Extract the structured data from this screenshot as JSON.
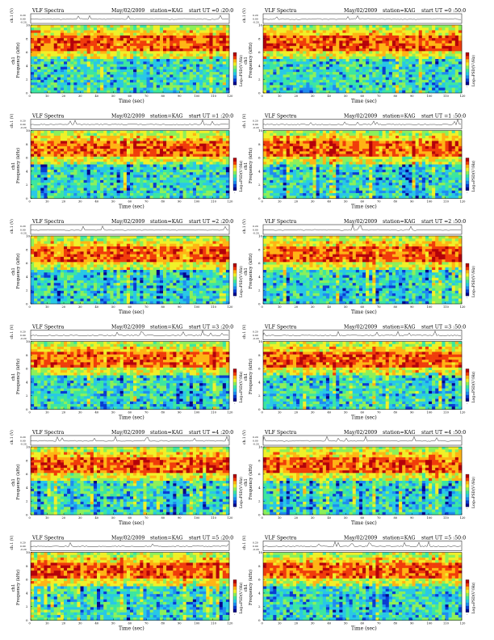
{
  "page": {
    "title": "VLF Spectra"
  },
  "colors": {
    "colormap": [
      "#06068c",
      "#0a3cd2",
      "#1e8cf0",
      "#28c8e6",
      "#3ce6a0",
      "#8cf05a",
      "#f0f028",
      "#ffb414",
      "#f03c0a",
      "#b4000a"
    ],
    "trace": "#000000",
    "background": "#ffffff"
  },
  "panel_text": {
    "title": "VLF Spectra",
    "date": "May/02/2009",
    "station": "station=KAG",
    "start_prefix": "start  UT"
  },
  "axis_text": {
    "ch1_label": "ch.1 (V)",
    "freq_label": "Frequency  (kHz)",
    "freq_label_top": "ch1",
    "colorbar_label": "Log₁₀PSD(V²/Hz)",
    "xlabel": "Time  (sec)"
  },
  "panels": [
    {
      "start": "0 :20:0"
    },
    {
      "start": "0 :50:0"
    },
    {
      "start": "1 :20:0"
    },
    {
      "start": "1 :50:0"
    },
    {
      "start": "2 :20:0"
    },
    {
      "start": "2 :50:0"
    },
    {
      "start": "3 :20:0"
    },
    {
      "start": "3 :50:0"
    },
    {
      "start": "4 :20:0"
    },
    {
      "start": "4 :50:0"
    },
    {
      "start": "5 :20:0"
    },
    {
      "start": "5 :50:0"
    }
  ],
  "chart_data": {
    "type": "heatmap",
    "title": "VLF Spectra",
    "date": "May/02/2009",
    "station": "KAG",
    "xlabel": "Time (sec)",
    "ylabel": "Frequency (kHz)",
    "xlim": [
      0,
      120
    ],
    "ylim": [
      0,
      10
    ],
    "x_ticks": [
      "0",
      "10",
      "20",
      "30",
      "40",
      "50",
      "60",
      "70",
      "80",
      "90",
      "100",
      "110",
      "120"
    ],
    "y_ticks": [
      "0",
      "2",
      "4",
      "6",
      "8",
      "10"
    ],
    "trace_ticks": [
      "0.20",
      "0.00",
      "-0.20"
    ],
    "colorbar": {
      "label": "Log10PSD(V^2/Hz)",
      "low_tick": "-",
      "scale": "blue (low) to red (high)"
    },
    "note": "Spectrogram: strongest power (red) between ~6 and ~9 kHz, moderate (green) below 5 kHz, weakest (blue) at 0-5 kHz in patches; vertical sferic streaks throughout.",
    "start_times_UT": [
      "0:20:0",
      "0:50:0",
      "1:20:0",
      "1:50:0",
      "2:20:0",
      "2:50:0",
      "3:20:0",
      "3:50:0",
      "4:20:0",
      "4:50:0",
      "5:20:0",
      "5:50:0"
    ]
  }
}
